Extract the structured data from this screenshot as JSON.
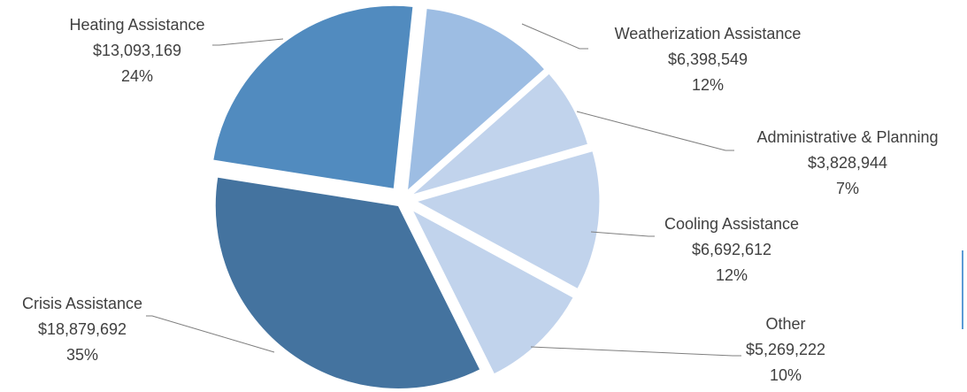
{
  "chart_data": {
    "type": "pie",
    "title": "",
    "exploded": true,
    "slices": [
      {
        "name": "Weatherization Assistance",
        "value_label": "$6,398,549",
        "percent_label": "12%",
        "value": 6398549,
        "color": "#9dbde3"
      },
      {
        "name": "Administrative & Planning",
        "value_label": "$3,828,944",
        "percent_label": "7%",
        "value": 3828944,
        "color": "#c1d3ec"
      },
      {
        "name": "Cooling Assistance",
        "value_label": "$6,692,612",
        "percent_label": "12%",
        "value": 6692612,
        "color": "#c1d3ec"
      },
      {
        "name": "Other",
        "value_label": "$5,269,222",
        "percent_label": "10%",
        "value": 5269222,
        "color": "#c1d3ec"
      },
      {
        "name": "Crisis Assistance",
        "value_label": "$18,879,692",
        "percent_label": "35%",
        "value": 18879692,
        "color": "#44739f"
      },
      {
        "name": "Heating Assistance",
        "value_label": "$13,093,169",
        "percent_label": "24%",
        "value": 13093169,
        "color": "#518bbf"
      }
    ],
    "colors": {
      "leader_line": "#7f7f7f",
      "label_text": "#404040",
      "accent_bar": "#5b9bd5"
    }
  }
}
